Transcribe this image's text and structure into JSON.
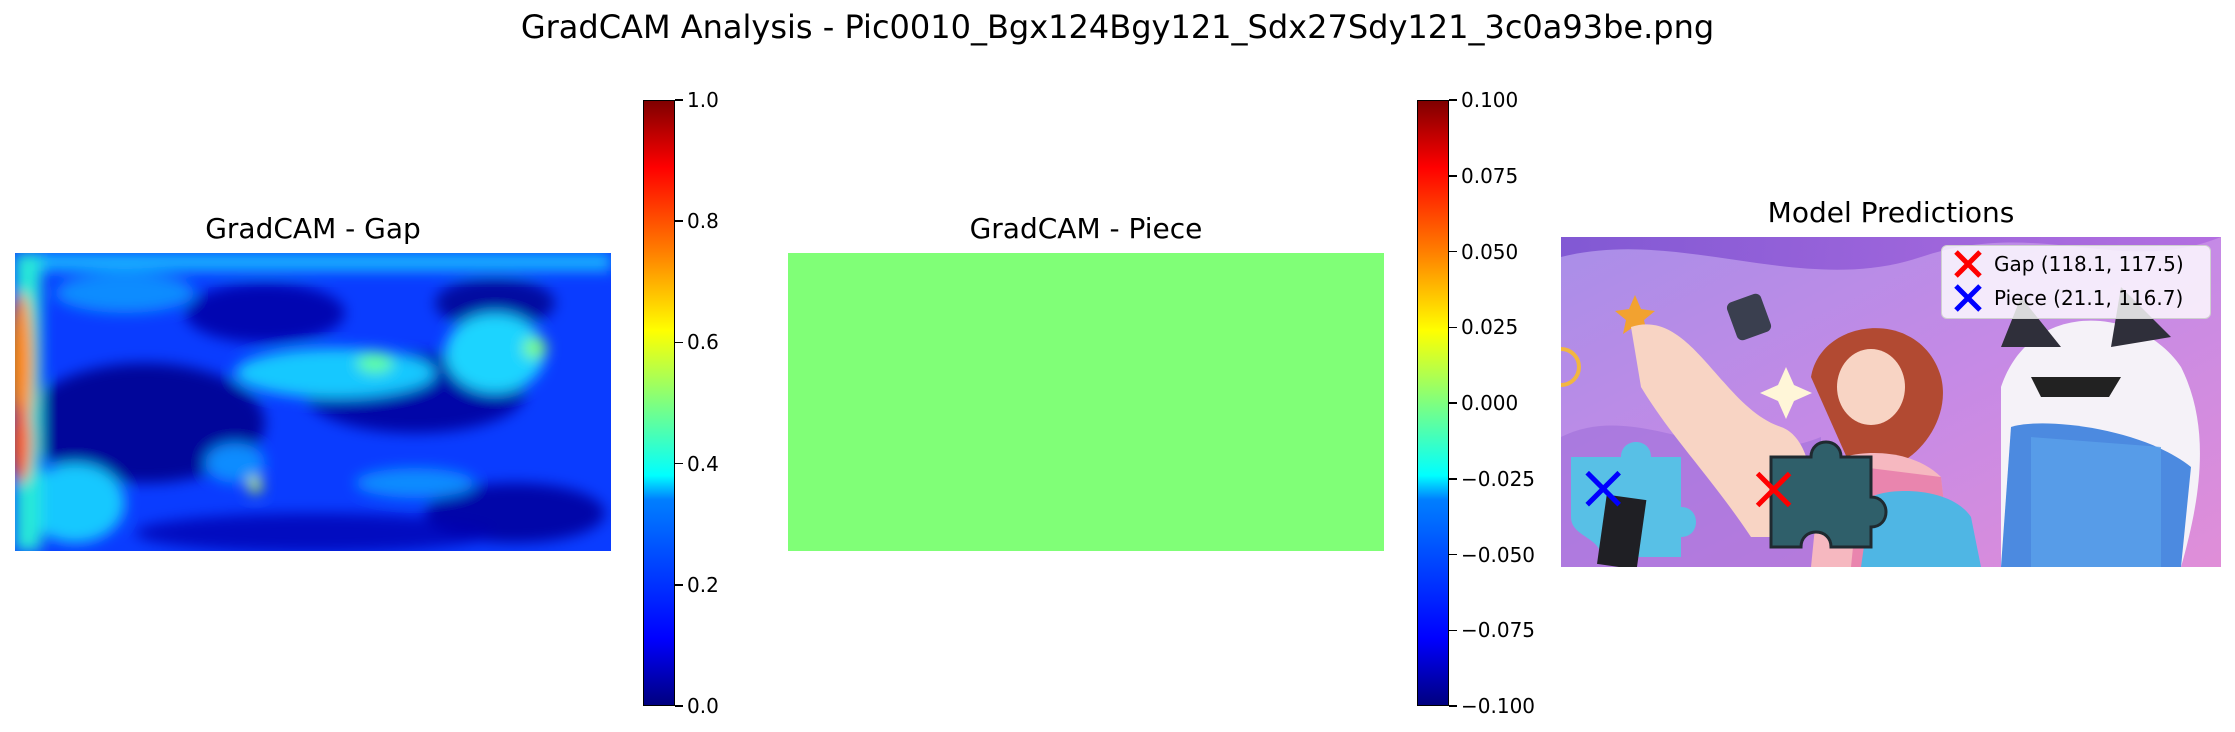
{
  "suptitle": "GradCAM Analysis - Pic0010_Bgx124Bgy121_Sdx27Sdy121_3c0a93be.png",
  "chart_data": [
    {
      "type": "heatmap",
      "title": "GradCAM - Gap",
      "colormap": "jet",
      "colorbar": {
        "min": 0.0,
        "max": 1.0,
        "ticks": [
          "0.0",
          "0.2",
          "0.4",
          "0.6",
          "0.8",
          "1.0"
        ]
      }
    },
    {
      "type": "heatmap",
      "title": "GradCAM - Piece",
      "colormap": "jet",
      "uniform_value": 0.0,
      "uniform_color": "#80ff77",
      "colorbar": {
        "min": -0.1,
        "max": 0.1,
        "ticks": [
          "−0.100",
          "−0.075",
          "−0.050",
          "−0.025",
          "0.000",
          "0.025",
          "0.050",
          "0.075",
          "0.100"
        ]
      }
    },
    {
      "type": "scatter",
      "title": "Model Predictions",
      "series": [
        {
          "name": "Gap (118.1, 117.5)",
          "marker": "x",
          "color": "#ff0000",
          "x": 118.1,
          "y": 117.5
        },
        {
          "name": "Piece (21.1, 116.7)",
          "marker": "x",
          "color": "#0000ff",
          "x": 21.1,
          "y": 116.7
        }
      ],
      "legend": "top-right"
    }
  ]
}
